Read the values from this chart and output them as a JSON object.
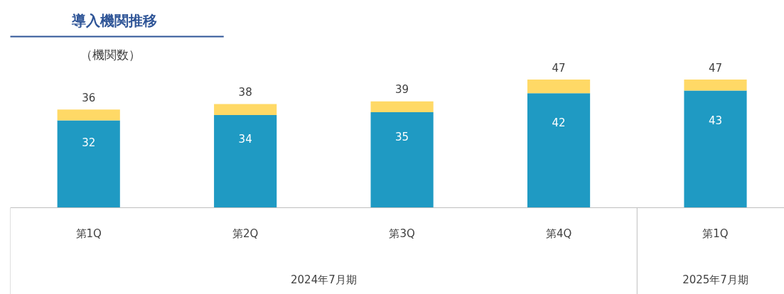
{
  "chart_data": {
    "type": "bar",
    "stacked": true,
    "title": "導入機関推移",
    "ylabel": "（機関数）",
    "categories": [
      "第1Q",
      "第2Q",
      "第3Q",
      "第4Q",
      "第1Q"
    ],
    "series": [
      {
        "color": "#1f9ac3",
        "values": [
          32,
          34,
          35,
          42,
          43
        ],
        "value_labels": [
          "32",
          "34",
          "35",
          "42",
          "43"
        ]
      },
      {
        "color": "#ffd966",
        "values": [
          4,
          4,
          4,
          5,
          4
        ]
      }
    ],
    "totals": [
      "36",
      "38",
      "39",
      "47",
      "47"
    ],
    "annotations": [
      "2024年7月期",
      "2025年7月期"
    ],
    "grid": false
  }
}
